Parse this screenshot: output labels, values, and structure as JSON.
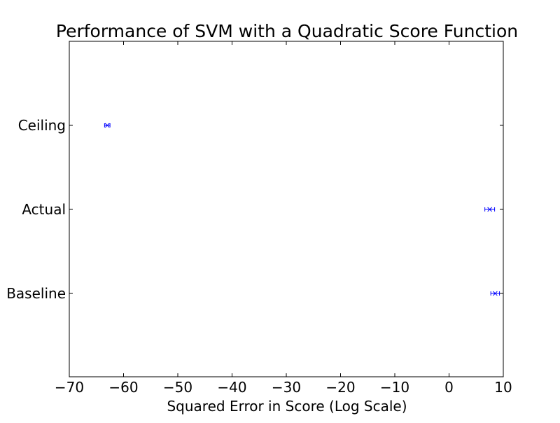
{
  "chart_data": {
    "type": "scatter",
    "title": "Performance of SVM with a Quadratic Score Function",
    "xlabel": "Squared Error in Score (Log Scale)",
    "ylabel": "",
    "xlim": [
      -70,
      10
    ],
    "x_ticks": [
      -70,
      -60,
      -50,
      -40,
      -30,
      -20,
      -10,
      0,
      10
    ],
    "x_tick_labels": [
      "−70",
      "−60",
      "−50",
      "−40",
      "−30",
      "−20",
      "−10",
      "0",
      "10"
    ],
    "categories": [
      "Baseline",
      "Actual",
      "Ceiling"
    ],
    "points": [
      {
        "category": "Baseline",
        "x": 8.5,
        "xerr": 0.8
      },
      {
        "category": "Actual",
        "x": 7.5,
        "xerr": 0.9
      },
      {
        "category": "Ceiling",
        "x": -63.0,
        "xerr": 0.5
      }
    ],
    "marker": "x",
    "error_bars": true,
    "grid": false,
    "colors": {
      "series": "#0000ff",
      "axes": "#000000"
    }
  }
}
